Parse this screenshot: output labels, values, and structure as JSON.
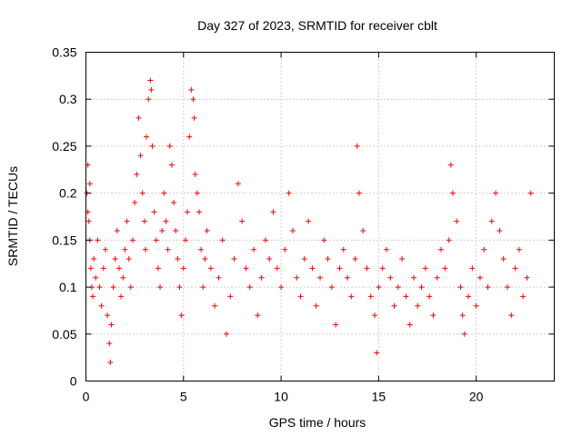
{
  "chart_data": {
    "type": "scatter",
    "title": "Day 327 of 2023, SRMTID for receiver cblt",
    "xlabel": "GPS time / hours",
    "ylabel": "SRMTID / TECUs",
    "xlim": [
      0,
      24
    ],
    "ylim": [
      0,
      0.35
    ],
    "x_ticks": [
      0,
      5,
      10,
      15,
      20
    ],
    "x_tick_labels": [
      "0",
      "5",
      "10",
      "15",
      "20"
    ],
    "y_ticks": [
      0,
      0.05,
      0.1,
      0.15,
      0.2,
      0.25,
      0.3,
      0.35
    ],
    "y_tick_labels": [
      "0",
      "0.05",
      "0.1",
      "0.15",
      "0.2",
      "0.25",
      "0.3",
      "0.35"
    ],
    "grid": true,
    "marker": "plus",
    "series": [
      {
        "name": "SRMTID",
        "color": "#ff0000",
        "x": [
          0.05,
          0.1,
          0.15,
          0.2,
          0.25,
          0.3,
          0.2,
          0.1,
          0.35,
          0.4,
          0.5,
          0.6,
          0.7,
          0.8,
          0.9,
          1.0,
          1.1,
          1.2,
          1.25,
          1.3,
          1.4,
          1.5,
          1.6,
          1.7,
          1.8,
          1.9,
          2.0,
          2.1,
          2.2,
          2.3,
          2.4,
          2.5,
          2.6,
          2.7,
          2.8,
          2.9,
          3.0,
          3.05,
          3.1,
          3.2,
          3.3,
          3.35,
          3.4,
          3.5,
          3.6,
          3.7,
          3.8,
          3.9,
          4.0,
          4.1,
          4.2,
          4.3,
          4.4,
          4.5,
          4.6,
          4.7,
          4.8,
          4.9,
          5.0,
          5.1,
          5.2,
          5.3,
          5.4,
          5.5,
          5.55,
          5.6,
          5.7,
          5.8,
          5.9,
          6.0,
          6.1,
          6.2,
          6.4,
          6.6,
          6.8,
          7.0,
          7.2,
          7.4,
          7.6,
          7.8,
          8.0,
          8.2,
          8.4,
          8.6,
          8.8,
          9.0,
          9.2,
          9.4,
          9.6,
          9.8,
          10.0,
          10.2,
          10.4,
          10.6,
          10.8,
          11.0,
          11.2,
          11.4,
          11.6,
          11.8,
          12.0,
          12.2,
          12.4,
          12.6,
          12.8,
          13.0,
          13.2,
          13.4,
          13.6,
          13.8,
          13.9,
          14.0,
          14.2,
          14.4,
          14.6,
          14.8,
          14.9,
          15.0,
          15.2,
          15.4,
          15.6,
          15.8,
          16.0,
          16.2,
          16.4,
          16.6,
          16.8,
          17.0,
          17.2,
          17.4,
          17.6,
          17.8,
          18.0,
          18.2,
          18.4,
          18.6,
          18.7,
          18.8,
          19.0,
          19.2,
          19.3,
          19.4,
          19.6,
          19.8,
          20.0,
          20.2,
          20.4,
          20.6,
          20.8,
          21.0,
          21.2,
          21.4,
          21.6,
          21.8,
          22.0,
          22.2,
          22.4,
          22.6,
          22.8
        ],
        "y": [
          0.2,
          0.23,
          0.17,
          0.15,
          0.12,
          0.1,
          0.21,
          0.18,
          0.09,
          0.13,
          0.11,
          0.15,
          0.1,
          0.08,
          0.12,
          0.14,
          0.07,
          0.04,
          0.02,
          0.06,
          0.1,
          0.13,
          0.16,
          0.12,
          0.09,
          0.11,
          0.14,
          0.17,
          0.13,
          0.1,
          0.15,
          0.19,
          0.22,
          0.28,
          0.24,
          0.2,
          0.17,
          0.14,
          0.26,
          0.3,
          0.32,
          0.31,
          0.25,
          0.18,
          0.15,
          0.12,
          0.1,
          0.16,
          0.2,
          0.17,
          0.14,
          0.25,
          0.23,
          0.19,
          0.16,
          0.13,
          0.1,
          0.07,
          0.12,
          0.15,
          0.18,
          0.26,
          0.31,
          0.3,
          0.28,
          0.22,
          0.2,
          0.18,
          0.14,
          0.1,
          0.13,
          0.16,
          0.12,
          0.08,
          0.11,
          0.15,
          0.05,
          0.09,
          0.13,
          0.21,
          0.17,
          0.12,
          0.1,
          0.14,
          0.07,
          0.11,
          0.15,
          0.13,
          0.18,
          0.12,
          0.1,
          0.14,
          0.2,
          0.16,
          0.11,
          0.09,
          0.13,
          0.17,
          0.12,
          0.08,
          0.11,
          0.15,
          0.13,
          0.1,
          0.06,
          0.12,
          0.14,
          0.11,
          0.09,
          0.13,
          0.25,
          0.2,
          0.16,
          0.12,
          0.09,
          0.07,
          0.03,
          0.1,
          0.12,
          0.14,
          0.11,
          0.08,
          0.1,
          0.13,
          0.09,
          0.06,
          0.11,
          0.08,
          0.1,
          0.12,
          0.09,
          0.07,
          0.11,
          0.14,
          0.12,
          0.15,
          0.23,
          0.2,
          0.17,
          0.1,
          0.07,
          0.05,
          0.09,
          0.12,
          0.08,
          0.11,
          0.14,
          0.1,
          0.17,
          0.2,
          0.16,
          0.13,
          0.1,
          0.07,
          0.12,
          0.14,
          0.09,
          0.11,
          0.2
        ]
      }
    ]
  }
}
